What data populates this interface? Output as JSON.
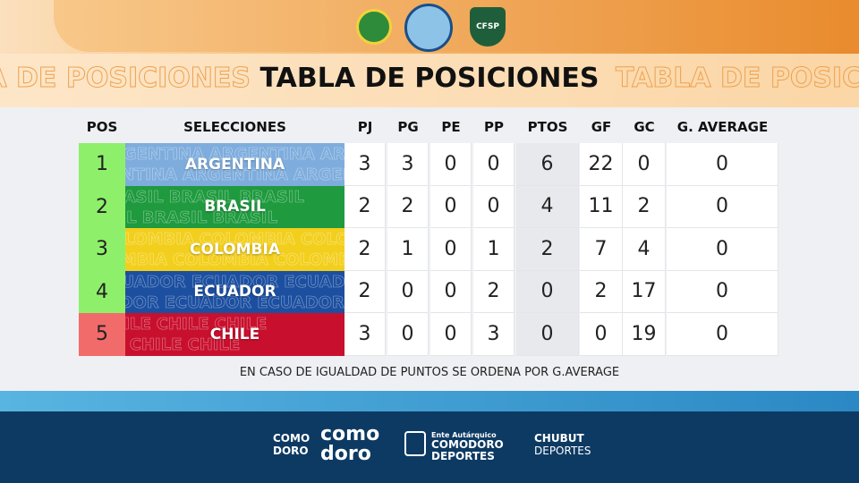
{
  "header": {
    "logo_text": "CFSP"
  },
  "title": "TABLA DE POSICIONES",
  "table": {
    "columns": [
      "POS",
      "SELECCIONES",
      "PJ",
      "PG",
      "PE",
      "PP",
      "PTOS",
      "GF",
      "GC",
      "G. AVERAGE"
    ],
    "rows": [
      [
        1,
        "ARGENTINA",
        3,
        3,
        0,
        0,
        6,
        22,
        0,
        0
      ],
      [
        2,
        "BRASIL",
        2,
        2,
        0,
        0,
        4,
        11,
        2,
        0
      ],
      [
        3,
        "COLOMBIA",
        2,
        1,
        0,
        1,
        2,
        7,
        4,
        0
      ],
      [
        4,
        "ECUADOR",
        2,
        0,
        0,
        2,
        0,
        2,
        17,
        0
      ],
      [
        5,
        "CHILE",
        3,
        0,
        0,
        3,
        0,
        0,
        19,
        0
      ]
    ]
  },
  "note": "EN CASO DE IGUALDAD DE PUNTOS SE ORDENA POR G.AVERAGE",
  "footer": {
    "sponsors": [
      [
        "COMO",
        "DORO"
      ],
      [
        "como",
        "doro"
      ],
      [
        "Ente Autárquico",
        "COMODORO",
        "DEPORTES"
      ],
      [
        "CHUBUT",
        "DEPORTES"
      ]
    ]
  }
}
